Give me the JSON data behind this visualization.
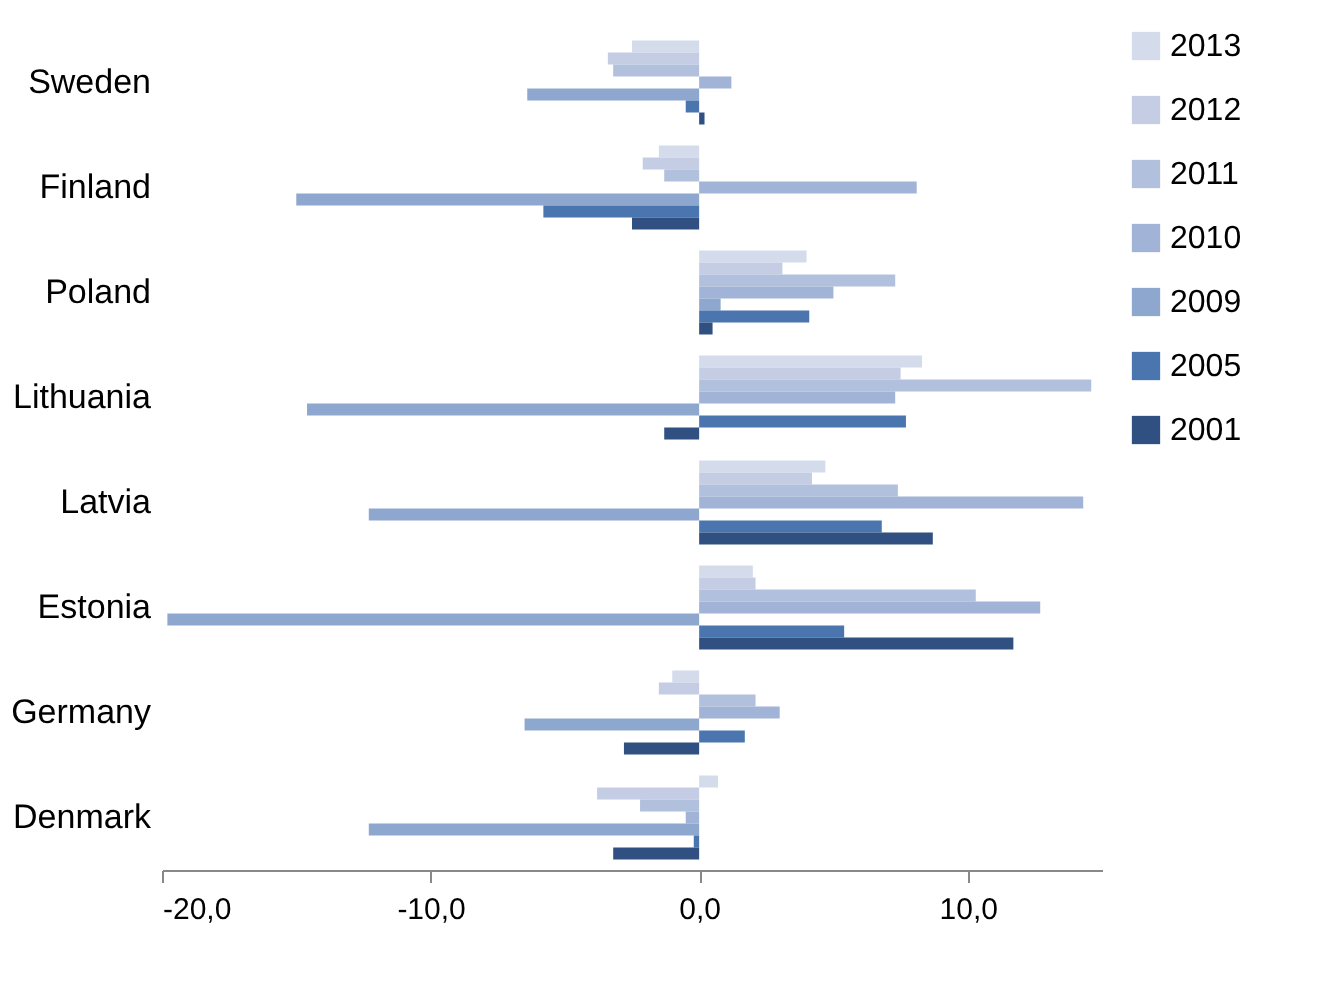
{
  "chart_data": {
    "type": "bar",
    "orientation": "horizontal",
    "categories": [
      "Sweden",
      "Finland",
      "Poland",
      "Lithuania",
      "Latvia",
      "Estonia",
      "Germany",
      "Denmark"
    ],
    "series": [
      {
        "name": "2013",
        "color": "#d4dbeb",
        "values": [
          -2.5,
          -1.5,
          4.0,
          8.3,
          4.7,
          2.0,
          -1.0,
          0.7
        ]
      },
      {
        "name": "2012",
        "color": "#c4cde3",
        "values": [
          -3.4,
          -2.1,
          3.1,
          7.5,
          4.2,
          2.1,
          -1.5,
          -3.8
        ]
      },
      {
        "name": "2011",
        "color": "#b1c0dc",
        "values": [
          -3.2,
          -1.3,
          7.3,
          14.6,
          7.4,
          10.3,
          2.1,
          -2.2
        ]
      },
      {
        "name": "2010",
        "color": "#a1b3d6",
        "values": [
          1.2,
          8.1,
          5.0,
          7.3,
          14.3,
          12.7,
          3.0,
          -0.5
        ]
      },
      {
        "name": "2009",
        "color": "#8ea7cf",
        "values": [
          -6.4,
          -15.0,
          0.8,
          -14.6,
          -12.3,
          -19.8,
          -6.5,
          -12.3
        ]
      },
      {
        "name": "2005",
        "color": "#4a75ae",
        "values": [
          -0.5,
          -5.8,
          4.1,
          7.7,
          6.8,
          5.4,
          1.7,
          -0.2
        ]
      },
      {
        "name": "2001",
        "color": "#2f5080",
        "values": [
          0.2,
          -2.5,
          0.5,
          -1.3,
          8.7,
          11.7,
          -2.8,
          -3.2
        ]
      }
    ],
    "xlim": [
      -20,
      15
    ],
    "xticks": [
      {
        "value": -20,
        "label": "-20,0"
      },
      {
        "value": -10,
        "label": "-10,0"
      },
      {
        "value": 0,
        "label": "0,0"
      },
      {
        "value": 10,
        "label": "10,0"
      }
    ],
    "legend": "right"
  }
}
